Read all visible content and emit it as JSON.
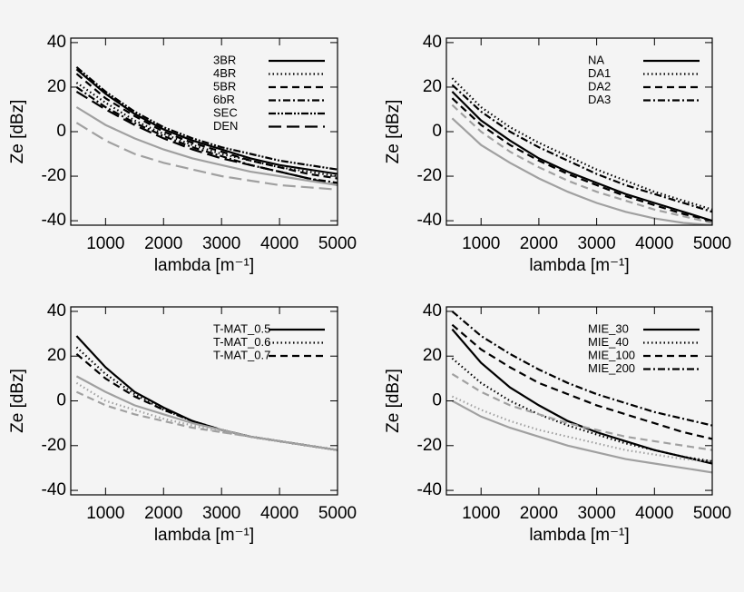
{
  "chart_data": [
    {
      "type": "line",
      "xlabel": "lambda [m⁻¹]",
      "ylabel": "Ze [dBz]",
      "x": [
        500,
        1000,
        1500,
        2000,
        2500,
        3000,
        3500,
        4000,
        4500,
        5000
      ],
      "xlim": [
        400,
        5000
      ],
      "xticks": [
        1000,
        2000,
        3000,
        4000,
        5000
      ],
      "ylim": [
        -42,
        42
      ],
      "yticks": [
        -40,
        -20,
        0,
        20,
        40
      ],
      "legend": "upper right",
      "series": [
        {
          "name": "3BR",
          "color": "#000000",
          "dash": "solid",
          "values": [
            28,
            17,
            8,
            1,
            -4,
            -8,
            -12,
            -15,
            -17,
            -19
          ]
        },
        {
          "name": "4BR",
          "color": "#000000",
          "dash": "dotted",
          "values": [
            22,
            13,
            5,
            -1,
            -6,
            -10,
            -13,
            -16,
            -18,
            -20
          ]
        },
        {
          "name": "5BR",
          "color": "#000000",
          "dash": "dashed",
          "values": [
            26,
            15,
            7,
            0,
            -5,
            -9,
            -13,
            -16,
            -19,
            -21
          ]
        },
        {
          "name": "6bR",
          "color": "#000000",
          "dash": "dashdot",
          "values": [
            20,
            11,
            4,
            -2,
            -7,
            -11,
            -15,
            -18,
            -21,
            -23
          ]
        },
        {
          "name": "SEC",
          "color": "#000000",
          "dash": "dashdotdot",
          "values": [
            29,
            18,
            9,
            2,
            -3,
            -7,
            -10,
            -13,
            -15,
            -17
          ]
        },
        {
          "name": "DEN",
          "color": "#000000",
          "dash": "longdash",
          "values": [
            18,
            10,
            3,
            -3,
            -8,
            -12,
            -15,
            -18,
            -21,
            -24
          ]
        },
        {
          "color": "#a0a0a0",
          "dash": "solid",
          "values": [
            11,
            3,
            -3,
            -8,
            -12,
            -15,
            -18,
            -20,
            -22,
            -24
          ]
        },
        {
          "color": "#a0a0a0",
          "dash": "longdash",
          "values": [
            4,
            -4,
            -10,
            -14,
            -17,
            -20,
            -22,
            -24,
            -25,
            -26
          ]
        }
      ]
    },
    {
      "type": "line",
      "xlabel": "lambda [m⁻¹]",
      "ylabel": "Ze [dBz]",
      "x": [
        500,
        1000,
        1500,
        2000,
        2500,
        3000,
        3500,
        4000,
        4500,
        5000
      ],
      "xlim": [
        400,
        5000
      ],
      "xticks": [
        1000,
        2000,
        3000,
        4000,
        5000
      ],
      "ylim": [
        -42,
        42
      ],
      "yticks": [
        -40,
        -20,
        0,
        20,
        40
      ],
      "legend": "upper right",
      "series": [
        {
          "name": "NA",
          "color": "#000000",
          "dash": "solid",
          "values": [
            18,
            5,
            -4,
            -12,
            -18,
            -23,
            -28,
            -32,
            -36,
            -40
          ]
        },
        {
          "name": "DA1",
          "color": "#000000",
          "dash": "dotted",
          "values": [
            24,
            11,
            2,
            -5,
            -11,
            -17,
            -22,
            -27,
            -31,
            -35
          ]
        },
        {
          "name": "DA2",
          "color": "#000000",
          "dash": "dashed",
          "values": [
            15,
            3,
            -6,
            -13,
            -19,
            -24,
            -29,
            -33,
            -37,
            -40
          ]
        },
        {
          "name": "DA3",
          "color": "#000000",
          "dash": "dashdot",
          "values": [
            21,
            9,
            0,
            -7,
            -13,
            -19,
            -24,
            -28,
            -32,
            -36
          ]
        },
        {
          "color": "#a0a0a0",
          "dash": "solid",
          "values": [
            6,
            -6,
            -14,
            -21,
            -27,
            -32,
            -36,
            -39,
            -41,
            -42
          ]
        },
        {
          "color": "#a0a0a0",
          "dash": "dashed",
          "values": [
            12,
            0,
            -9,
            -16,
            -22,
            -27,
            -31,
            -35,
            -38,
            -41
          ]
        }
      ]
    },
    {
      "type": "line",
      "xlabel": "lambda [m⁻¹]",
      "ylabel": "Ze [dBz]",
      "x": [
        500,
        1000,
        1500,
        2000,
        2500,
        3000,
        3500,
        4000,
        4500,
        5000
      ],
      "xlim": [
        400,
        5000
      ],
      "xticks": [
        1000,
        2000,
        3000,
        4000,
        5000
      ],
      "ylim": [
        -42,
        42
      ],
      "yticks": [
        -40,
        -20,
        0,
        20,
        40
      ],
      "legend": "upper right",
      "series": [
        {
          "name": "T-MAT_0.5",
          "color": "#000000",
          "dash": "solid",
          "values": [
            29,
            15,
            4,
            -3,
            -9,
            -13,
            -16,
            -18,
            -20,
            -22
          ]
        },
        {
          "name": "T-MAT_0.6",
          "color": "#000000",
          "dash": "dotted",
          "values": [
            24,
            12,
            3,
            -4,
            -9,
            -13,
            -16,
            -18,
            -20,
            -22
          ]
        },
        {
          "name": "T-MAT_0.7",
          "color": "#000000",
          "dash": "dashed",
          "values": [
            21,
            10,
            2,
            -4,
            -9,
            -13,
            -16,
            -18,
            -20,
            -22
          ]
        },
        {
          "color": "#a0a0a0",
          "dash": "solid",
          "values": [
            11,
            4,
            -2,
            -6,
            -10,
            -13,
            -16,
            -18,
            -20,
            -22
          ]
        },
        {
          "color": "#a0a0a0",
          "dash": "dotted",
          "values": [
            8,
            0,
            -4,
            -8,
            -11,
            -14,
            -16,
            -18,
            -20,
            -22
          ]
        },
        {
          "color": "#a0a0a0",
          "dash": "dashed",
          "values": [
            4,
            -2,
            -6,
            -9,
            -12,
            -14,
            -16,
            -18,
            -20,
            -22
          ]
        }
      ]
    },
    {
      "type": "line",
      "xlabel": "lambda [m⁻¹]",
      "ylabel": "Ze [dBz]",
      "x": [
        500,
        1000,
        1500,
        2000,
        2500,
        3000,
        3500,
        4000,
        4500,
        5000
      ],
      "xlim": [
        400,
        5000
      ],
      "xticks": [
        1000,
        2000,
        3000,
        4000,
        5000
      ],
      "ylim": [
        -42,
        42
      ],
      "yticks": [
        -40,
        -20,
        0,
        20,
        40
      ],
      "legend": "upper right",
      "series": [
        {
          "name": "MIE_30",
          "color": "#000000",
          "dash": "solid",
          "values": [
            32,
            17,
            6,
            -2,
            -9,
            -14,
            -18,
            -22,
            -25,
            -28
          ]
        },
        {
          "name": "MIE_40",
          "color": "#000000",
          "dash": "dotted",
          "values": [
            19,
            8,
            0,
            -6,
            -11,
            -15,
            -19,
            -22,
            -25,
            -27
          ]
        },
        {
          "name": "MIE_100",
          "color": "#000000",
          "dash": "dashed",
          "values": [
            34,
            23,
            15,
            8,
            3,
            -2,
            -6,
            -10,
            -14,
            -17
          ]
        },
        {
          "name": "MIE_200",
          "color": "#000000",
          "dash": "dashdot",
          "values": [
            40,
            29,
            21,
            14,
            8,
            3,
            -1,
            -5,
            -8,
            -11
          ]
        },
        {
          "color": "#a0a0a0",
          "dash": "solid",
          "values": [
            0,
            -7,
            -12,
            -16,
            -20,
            -23,
            -26,
            -28,
            -30,
            -32
          ]
        },
        {
          "color": "#a0a0a0",
          "dash": "dotted",
          "values": [
            2,
            -4,
            -9,
            -13,
            -16,
            -19,
            -22,
            -24,
            -26,
            -27
          ]
        },
        {
          "color": "#a0a0a0",
          "dash": "dashed",
          "values": [
            12,
            4,
            -2,
            -6,
            -10,
            -13,
            -16,
            -18,
            -20,
            -22
          ]
        }
      ]
    }
  ]
}
